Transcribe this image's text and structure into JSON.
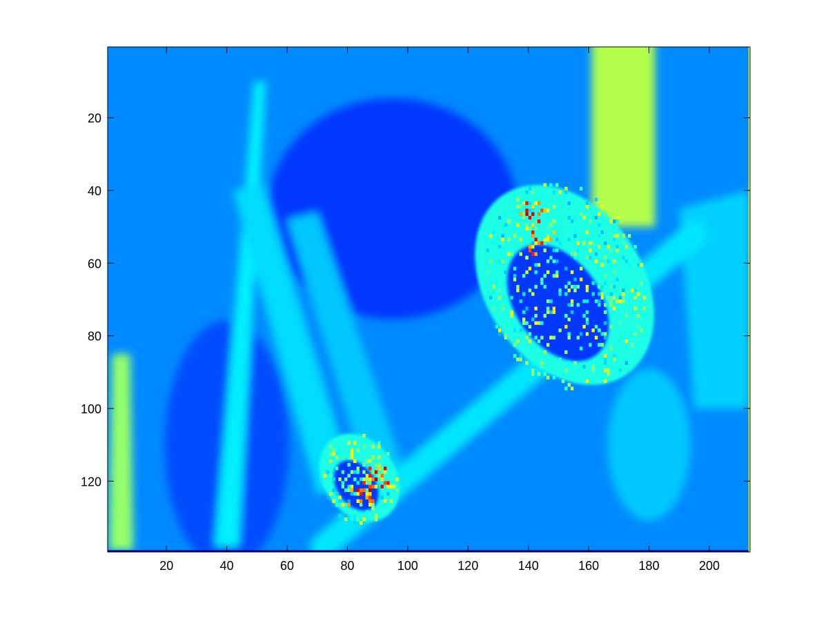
{
  "chart_data": {
    "type": "heatmap",
    "colormap": "jet",
    "colors": {
      "background": "#ffffff",
      "axes_frame": "#000000",
      "jet_dark_blue": "#00008f",
      "jet_blue": "#0000ff",
      "jet_mid_blue": "#0040ff",
      "jet_sky_blue": "#0080ff",
      "jet_cyan": "#00ffff",
      "jet_yellow": "#ffff00",
      "jet_red": "#ff0000"
    },
    "image_size": {
      "cols": 213,
      "rows": 139
    },
    "xlim": [
      0.5,
      213.5
    ],
    "ylim": [
      0.5,
      139.5
    ],
    "y_direction": "reverse",
    "grid": false,
    "colorbar": false,
    "x_ticks": [
      20,
      40,
      60,
      80,
      100,
      120,
      140,
      160,
      180,
      200
    ],
    "y_ticks": [
      20,
      40,
      60,
      80,
      100,
      120
    ],
    "x_tick_labels": [
      "20",
      "40",
      "60",
      "80",
      "100",
      "120",
      "140",
      "160",
      "180",
      "200"
    ],
    "y_tick_labels": [
      "20",
      "40",
      "60",
      "80",
      "100",
      "120"
    ],
    "features": [
      {
        "shape": "background",
        "level": 0.25
      },
      {
        "shape": "vertical-band",
        "x": [
          161,
          182
        ],
        "y": [
          1,
          50
        ],
        "level": 0.55
      },
      {
        "shape": "diagonal-stem",
        "from": [
          72,
          138
        ],
        "to": [
          195,
          52
        ],
        "level": 0.35
      },
      {
        "shape": "blob",
        "center": [
          152,
          66
        ],
        "rx": 26,
        "ry": 30,
        "level": 0.4
      },
      {
        "shape": "blob",
        "center": [
          84,
          119
        ],
        "rx": 12,
        "ry": 13,
        "level": 0.4
      },
      {
        "shape": "hot-spot",
        "center": [
          141,
          46
        ],
        "level": 0.9
      },
      {
        "shape": "hot-spot",
        "center": [
          144,
          54
        ],
        "level": 0.85
      },
      {
        "shape": "hot-spot",
        "center": [
          89,
          119
        ],
        "level": 0.95
      },
      {
        "shape": "hot-spot",
        "center": [
          84,
          123
        ],
        "level": 0.85
      }
    ]
  }
}
